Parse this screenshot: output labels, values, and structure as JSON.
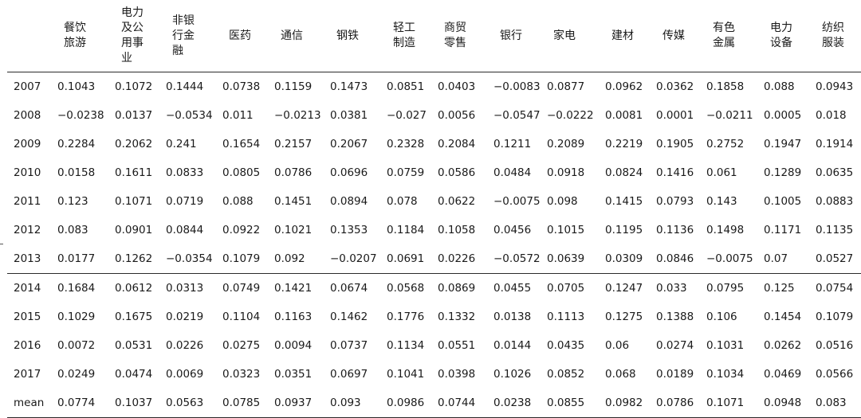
{
  "columns": [
    "餐饮\n旅游",
    "电力\n及公\n用事\n业",
    "非银\n行金\n融",
    "医药",
    "通信",
    "钢铁",
    "轻工\n制造",
    "商贸\n零售",
    "银行",
    "家电",
    "建材",
    "传媒",
    "有色\n金属",
    "电力\n设备",
    "纺织\n服装"
  ],
  "rows": [
    {
      "label": "2007",
      "values": [
        "0.1043",
        "0.1072",
        "0.1444",
        "0.0738",
        "0.1159",
        "0.1473",
        "0.0851",
        "0.0403",
        "−0.0083",
        "0.0877",
        "0.0962",
        "0.0362",
        "0.1858",
        "0.088",
        "0.0943"
      ]
    },
    {
      "label": "2008",
      "values": [
        "−0.0238",
        "0.0137",
        "−0.0534",
        "0.011",
        "−0.0213",
        "0.0381",
        "−0.027",
        "0.0056",
        "−0.0547",
        "−0.0222",
        "0.0081",
        "0.0001",
        "−0.0211",
        "0.0005",
        "0.018"
      ]
    },
    {
      "label": "2009",
      "values": [
        "0.2284",
        "0.2062",
        "0.241",
        "0.1654",
        "0.2157",
        "0.2067",
        "0.2328",
        "0.2084",
        "0.1211",
        "0.2089",
        "0.2219",
        "0.1905",
        "0.2752",
        "0.1947",
        "0.1914"
      ]
    },
    {
      "label": "2010",
      "values": [
        "0.0158",
        "0.1611",
        "0.0833",
        "0.0805",
        "0.0786",
        "0.0696",
        "0.0759",
        "0.0586",
        "0.0484",
        "0.0918",
        "0.0824",
        "0.1416",
        "0.061",
        "0.1289",
        "0.0635"
      ]
    },
    {
      "label": "2011",
      "values": [
        "0.123",
        "0.1071",
        "0.0719",
        "0.088",
        "0.1451",
        "0.0894",
        "0.078",
        "0.0622",
        "−0.0075",
        "0.098",
        "0.1415",
        "0.0793",
        "0.143",
        "0.1005",
        "0.0883"
      ]
    },
    {
      "label": "2012",
      "values": [
        "0.083",
        "0.0901",
        "0.0844",
        "0.0922",
        "0.1021",
        "0.1353",
        "0.1184",
        "0.1058",
        "0.0456",
        "0.1015",
        "0.1195",
        "0.1136",
        "0.1498",
        "0.1171",
        "0.1135"
      ]
    },
    {
      "label": "2013",
      "values": [
        "0.0177",
        "0.1262",
        "−0.0354",
        "0.1079",
        "0.092",
        "−0.0207",
        "0.0691",
        "0.0226",
        "−0.0572",
        "0.0639",
        "0.0309",
        "0.0846",
        "−0.0075",
        "0.07",
        "0.0527"
      ]
    },
    {
      "label": "2014",
      "values": [
        "0.1684",
        "0.0612",
        "0.0313",
        "0.0749",
        "0.1421",
        "0.0674",
        "0.0568",
        "0.0869",
        "0.0455",
        "0.0705",
        "0.1247",
        "0.033",
        "0.0795",
        "0.125",
        "0.0754"
      ]
    },
    {
      "label": "2015",
      "values": [
        "0.1029",
        "0.1675",
        "0.0219",
        "0.1104",
        "0.1163",
        "0.1462",
        "0.1776",
        "0.1332",
        "0.0138",
        "0.1113",
        "0.1275",
        "0.1388",
        "0.106",
        "0.1454",
        "0.1079"
      ]
    },
    {
      "label": "2016",
      "values": [
        "0.0072",
        "0.0531",
        "0.0226",
        "0.0275",
        "0.0094",
        "0.0737",
        "0.1134",
        "0.0551",
        "0.0144",
        "0.0435",
        "0.06",
        "0.0274",
        "0.1031",
        "0.0262",
        "0.0516"
      ]
    },
    {
      "label": "2017",
      "values": [
        "0.0249",
        "0.0474",
        "0.0069",
        "0.0323",
        "0.0351",
        "0.0697",
        "0.1041",
        "0.0398",
        "0.1026",
        "0.0852",
        "0.068",
        "0.0189",
        "0.1034",
        "0.0469",
        "0.0566"
      ]
    },
    {
      "label": "mean",
      "values": [
        "0.0774",
        "0.1037",
        "0.0563",
        "0.0785",
        "0.0937",
        "0.093",
        "0.0986",
        "0.0744",
        "0.0238",
        "0.0855",
        "0.0982",
        "0.0786",
        "0.1071",
        "0.0948",
        "0.083"
      ]
    }
  ]
}
